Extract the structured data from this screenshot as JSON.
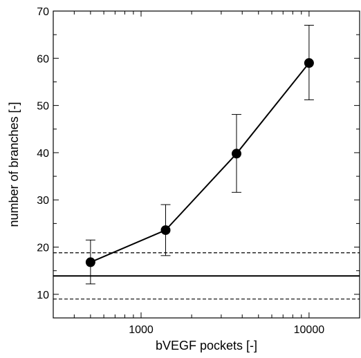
{
  "chart_data": {
    "type": "line",
    "title": "",
    "xlabel": "bVEGF pockets [-]",
    "ylabel": "number of branches [-]",
    "x_scale": "log",
    "xlim": [
      300,
      20000
    ],
    "ylim": [
      5,
      70
    ],
    "x_ticks": [
      {
        "value": 1000,
        "label": "1000"
      },
      {
        "value": 10000,
        "label": "10000"
      }
    ],
    "y_ticks": [
      {
        "value": 10,
        "label": "10"
      },
      {
        "value": 20,
        "label": "20"
      },
      {
        "value": 30,
        "label": "30"
      },
      {
        "value": 40,
        "label": "40"
      },
      {
        "value": 50,
        "label": "50"
      },
      {
        "value": 60,
        "label": "60"
      },
      {
        "value": 70,
        "label": "70"
      }
    ],
    "grid": false,
    "legend": "none",
    "series": [
      {
        "x": [
          500,
          1400,
          3700,
          10000
        ],
        "y": [
          16.8,
          23.6,
          39.8,
          59.0
        ],
        "y_err_low": [
          12.2,
          18.2,
          31.6,
          51.2
        ],
        "y_err_high": [
          21.5,
          29.0,
          48.1,
          67.0
        ],
        "marker": "filled-circle",
        "color": "#000000"
      }
    ],
    "reference_lines": [
      {
        "y": 13.9,
        "style": "solid"
      },
      {
        "y": 18.8,
        "style": "dashed"
      },
      {
        "y": 9.0,
        "style": "dashed"
      }
    ]
  }
}
